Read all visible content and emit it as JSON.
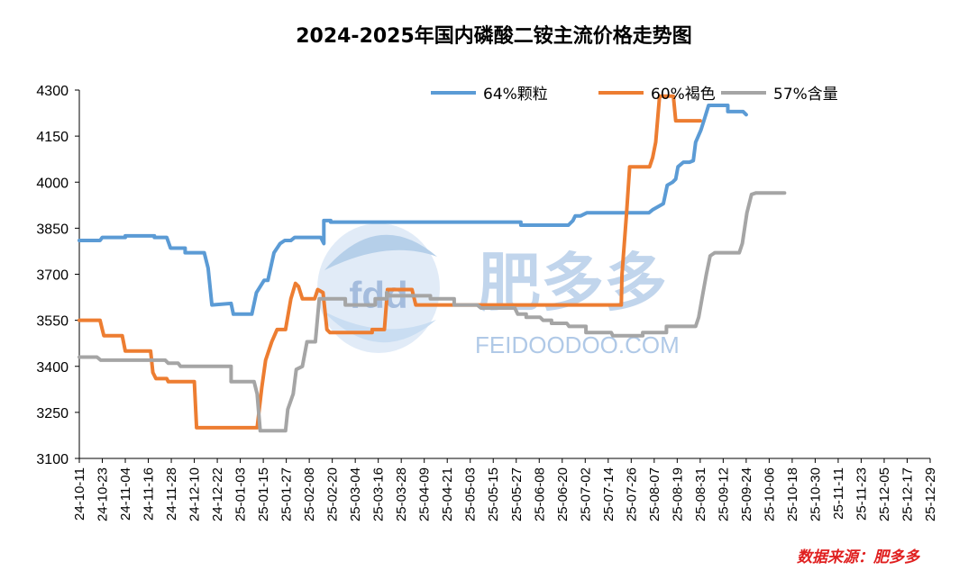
{
  "chart_data": {
    "type": "line",
    "title": "2024-2025年国内磷酸二铵主流价格走势图",
    "ylim": [
      3100,
      4300
    ],
    "yticks": [
      3100,
      3250,
      3400,
      3550,
      3700,
      3850,
      4000,
      4150,
      4300
    ],
    "categories": [
      "24-10-11",
      "24-10-23",
      "24-11-04",
      "24-11-16",
      "24-11-28",
      "24-12-10",
      "24-12-22",
      "25-01-03",
      "25-01-15",
      "25-01-27",
      "25-02-08",
      "25-02-20",
      "25-03-04",
      "25-03-16",
      "25-03-28",
      "25-04-09",
      "25-04-21",
      "25-05-03",
      "25-05-15",
      "25-05-27",
      "25-06-08",
      "25-06-20",
      "25-07-02",
      "25-07-14",
      "25-07-26",
      "25-08-07",
      "25-08-19",
      "25-08-31",
      "25-09-12",
      "25-09-24",
      "25-10-06",
      "25-10-18",
      "25-10-30",
      "25-11-11",
      "25-11-23",
      "25-12-05",
      "25-12-17",
      "25-12-29"
    ],
    "grid": false,
    "legend_position": "top",
    "series": [
      {
        "name": "64%颗粒",
        "color": "#5b9bd5",
        "points": [
          [
            0,
            3810
          ],
          [
            2.7,
            3810
          ],
          [
            3,
            3820
          ],
          [
            6,
            3820
          ],
          [
            6,
            3825
          ],
          [
            9.8,
            3825
          ],
          [
            9.8,
            3820
          ],
          [
            11.4,
            3820
          ],
          [
            11.9,
            3785
          ],
          [
            13.8,
            3785
          ],
          [
            13.8,
            3770
          ],
          [
            16.3,
            3770
          ],
          [
            16.8,
            3720
          ],
          [
            17.3,
            3600
          ],
          [
            19.8,
            3605
          ],
          [
            20.1,
            3570
          ],
          [
            22.5,
            3570
          ],
          [
            23.1,
            3640
          ],
          [
            24.1,
            3680
          ],
          [
            24.6,
            3680
          ],
          [
            25.4,
            3770
          ],
          [
            26.2,
            3800
          ],
          [
            26.8,
            3810
          ],
          [
            27.6,
            3810
          ],
          [
            28.1,
            3820
          ],
          [
            31.5,
            3820
          ],
          [
            31.9,
            3800
          ],
          [
            31.9,
            3875
          ],
          [
            32.8,
            3875
          ],
          [
            32.8,
            3870
          ],
          [
            57.6,
            3870
          ],
          [
            57.6,
            3860
          ],
          [
            63.8,
            3860
          ],
          [
            64.4,
            3875
          ],
          [
            64.7,
            3890
          ],
          [
            65.4,
            3890
          ],
          [
            66.2,
            3900
          ],
          [
            74.3,
            3900
          ],
          [
            74.8,
            3910
          ],
          [
            75.5,
            3920
          ],
          [
            76.2,
            3930
          ],
          [
            76.7,
            3990
          ],
          [
            77.4,
            4000
          ],
          [
            77.8,
            4010
          ],
          [
            78.1,
            4050
          ],
          [
            78.8,
            4065
          ],
          [
            79.6,
            4065
          ],
          [
            80.1,
            4070
          ],
          [
            80.4,
            4130
          ],
          [
            81.1,
            4170
          ],
          [
            81.6,
            4210
          ],
          [
            82.1,
            4250
          ],
          [
            84.6,
            4250
          ],
          [
            84.6,
            4230
          ],
          [
            86.6,
            4230
          ],
          [
            87,
            4220
          ]
        ]
      },
      {
        "name": "60%褐色",
        "color": "#ed7d31",
        "points": [
          [
            0,
            3550
          ],
          [
            2.7,
            3550
          ],
          [
            3,
            3520
          ],
          [
            3.2,
            3500
          ],
          [
            5.6,
            3500
          ],
          [
            6,
            3450
          ],
          [
            9.3,
            3450
          ],
          [
            9.6,
            3380
          ],
          [
            10,
            3360
          ],
          [
            11.4,
            3360
          ],
          [
            11.6,
            3350
          ],
          [
            15,
            3350
          ],
          [
            15.3,
            3200
          ],
          [
            23.2,
            3200
          ],
          [
            23.8,
            3330
          ],
          [
            24.3,
            3420
          ],
          [
            25.1,
            3480
          ],
          [
            25.8,
            3520
          ],
          [
            26.9,
            3520
          ],
          [
            27.6,
            3620
          ],
          [
            28.2,
            3670
          ],
          [
            28.6,
            3660
          ],
          [
            29.1,
            3620
          ],
          [
            30.7,
            3620
          ],
          [
            31.1,
            3650
          ],
          [
            31.8,
            3640
          ],
          [
            32.3,
            3520
          ],
          [
            32.7,
            3510
          ],
          [
            38.2,
            3510
          ],
          [
            38.2,
            3520
          ],
          [
            39.8,
            3520
          ],
          [
            40.2,
            3650
          ],
          [
            43.4,
            3650
          ],
          [
            43.6,
            3630
          ],
          [
            43.9,
            3600
          ],
          [
            70.7,
            3600
          ],
          [
            70.7,
            3600
          ],
          [
            70.8,
            3700
          ],
          [
            71.4,
            3900
          ],
          [
            71.8,
            4050
          ],
          [
            74.4,
            4050
          ],
          [
            74.8,
            4080
          ],
          [
            75.2,
            4130
          ],
          [
            75.7,
            4280
          ],
          [
            77.5,
            4280
          ],
          [
            77.8,
            4200
          ],
          [
            81,
            4200
          ]
        ]
      },
      {
        "name": "57%含量",
        "color": "#a5a5a5",
        "points": [
          [
            0,
            3430
          ],
          [
            2.3,
            3430
          ],
          [
            2.8,
            3420
          ],
          [
            11.2,
            3420
          ],
          [
            11.6,
            3410
          ],
          [
            12.9,
            3410
          ],
          [
            13.2,
            3400
          ],
          [
            19.8,
            3400
          ],
          [
            19.8,
            3350
          ],
          [
            22.8,
            3350
          ],
          [
            23.2,
            3310
          ],
          [
            23.6,
            3190
          ],
          [
            26.9,
            3190
          ],
          [
            27.2,
            3260
          ],
          [
            27.9,
            3310
          ],
          [
            28.3,
            3390
          ],
          [
            29.1,
            3400
          ],
          [
            29.7,
            3480
          ],
          [
            30.8,
            3480
          ],
          [
            31.3,
            3620
          ],
          [
            34.7,
            3620
          ],
          [
            34.7,
            3600
          ],
          [
            38.6,
            3600
          ],
          [
            38.6,
            3620
          ],
          [
            40.1,
            3620
          ],
          [
            40.1,
            3640
          ],
          [
            40.5,
            3630
          ],
          [
            45.8,
            3630
          ],
          [
            45.8,
            3620
          ],
          [
            48.9,
            3620
          ],
          [
            48.9,
            3600
          ],
          [
            51.9,
            3600
          ],
          [
            52.4,
            3590
          ],
          [
            56.8,
            3590
          ],
          [
            57.2,
            3570
          ],
          [
            58.3,
            3570
          ],
          [
            58.3,
            3560
          ],
          [
            60.1,
            3560
          ],
          [
            60.5,
            3550
          ],
          [
            61.6,
            3550
          ],
          [
            61.6,
            3540
          ],
          [
            63.6,
            3540
          ],
          [
            63.9,
            3530
          ],
          [
            66.1,
            3530
          ],
          [
            66.1,
            3510
          ],
          [
            69.4,
            3510
          ],
          [
            69.6,
            3500
          ],
          [
            73.5,
            3500
          ],
          [
            73.5,
            3510
          ],
          [
            76.6,
            3510
          ],
          [
            76.6,
            3530
          ],
          [
            80.4,
            3530
          ],
          [
            80.8,
            3560
          ],
          [
            81.3,
            3630
          ],
          [
            81.8,
            3700
          ],
          [
            82.3,
            3760
          ],
          [
            82.9,
            3770
          ],
          [
            86.1,
            3770
          ],
          [
            86.5,
            3800
          ],
          [
            87.1,
            3900
          ],
          [
            87.7,
            3960
          ],
          [
            88.3,
            3965
          ],
          [
            92,
            3965
          ]
        ]
      }
    ]
  },
  "source": "数据来源：肥多多",
  "watermark": {
    "name": "肥多多",
    "url": "FEIDOODOO.COM",
    "emblem": "fdd"
  }
}
